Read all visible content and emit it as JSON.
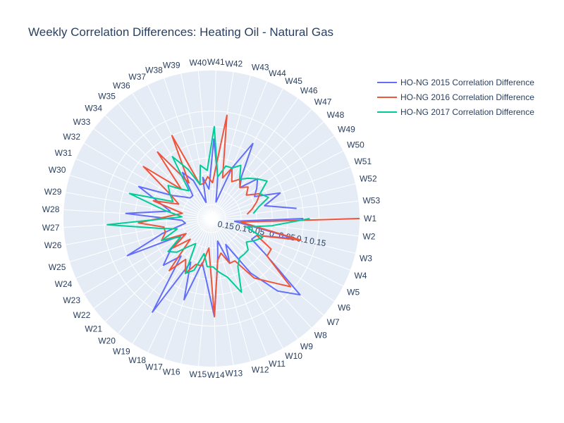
{
  "chart_data": {
    "type": "polar-line",
    "title": "Weekly Correlation Differences: Heating Oil - Natural Gas",
    "angular_categories": [
      "W1",
      "W2",
      "W3",
      "W4",
      "W5",
      "W6",
      "W7",
      "W8",
      "W9",
      "W10",
      "W11",
      "W12",
      "W13",
      "W14",
      "W15",
      "W16",
      "W17",
      "W18",
      "W19",
      "W20",
      "W21",
      "W22",
      "W23",
      "W24",
      "W25",
      "W26",
      "W27",
      "W28",
      "W29",
      "W30",
      "W31",
      "W32",
      "W33",
      "W34",
      "W35",
      "W36",
      "W37",
      "W38",
      "W39",
      "W40",
      "W41",
      "W42",
      "W43",
      "W44",
      "W45",
      "W46",
      "W47",
      "W48",
      "W49",
      "W50",
      "W51",
      "W52",
      "W53"
    ],
    "radial_range": [
      0.195,
      -0.28
    ],
    "radial_ticks": [
      0.15,
      0.1,
      0.05,
      0,
      -0.05,
      -0.1,
      -0.15
    ],
    "radial_tick_labels": [
      "0.15",
      "0.1",
      "0.05",
      "0",
      "0.05",
      "0.1",
      "0.15"
    ],
    "legend_position": "top-right",
    "series": [
      {
        "name": "HO-NG 2015 Correlation Difference",
        "color": "#636efa",
        "values": [
          -0.1,
          0.12,
          -0.08,
          0.04,
          0.05,
          -0.02,
          -0.18,
          -0.12,
          -0.02,
          0.1,
          0.04,
          0.12,
          0.06,
          -0.12,
          0.0,
          0.05,
          -0.08,
          0.04,
          -0.16,
          0.04,
          -0.02,
          0.03,
          0.1,
          -0.1,
          0.03,
          0.11,
          0.1,
          -0.08,
          0.06,
          0.02,
          -0.06,
          0.05,
          0.08,
          0.1,
          0.1,
          0.02,
          0.06,
          0.14,
          0.06,
          0.1,
          -0.06,
          0.06,
          0.14,
          0.02,
          -0.08,
          0.03,
          0.06,
          0.0,
          0.02,
          0.04,
          -0.04,
          0.02,
          -0.08
        ]
      },
      {
        "name": "HO-NG 2016 Correlation Difference",
        "color": "#ef553b",
        "values": [
          -0.28,
          0.1,
          -0.1,
          0.04,
          -0.02,
          -0.02,
          -0.14,
          -0.08,
          -0.04,
          0.04,
          0.04,
          0.08,
          0.06,
          -0.12,
          0.1,
          0.04,
          0.04,
          0.0,
          0.04,
          -0.02,
          0.1,
          0.04,
          0.1,
          0.02,
          0.04,
          0.04,
          -0.04,
          0.06,
          0.1,
          0.0,
          0.08,
          0.04,
          -0.08,
          0.06,
          -0.08,
          0.06,
          -0.1,
          0.08,
          0.08,
          0.06,
          0.08,
          -0.14,
          0.06,
          0.02,
          0.06,
          0.04,
          0.06,
          0.04,
          0.06,
          0.02,
          0.04,
          0.06,
          0.08
        ]
      },
      {
        "name": "HO-NG 2017 Correlation Difference",
        "color": "#00cc96",
        "values": [
          -0.12,
          0.0,
          0.08,
          0.02,
          0.04,
          0.06,
          0.04,
          0.04,
          0.04,
          0.02,
          -0.06,
          0.0,
          0.02,
          0.04,
          0.04,
          0.08,
          0.02,
          0.0,
          0.1,
          0.08,
          0.04,
          0.02,
          0.08,
          0.02,
          0.08,
          0.02,
          -0.14,
          0.1,
          0.04,
          -0.08,
          0.06,
          0.04,
          0.02,
          0.06,
          0.08,
          -0.04,
          0.02,
          0.08,
          0.02,
          0.04,
          -0.1,
          0.06,
          0.02,
          0.02,
          0.0,
          0.04,
          0.02,
          0.0,
          -0.02,
          0.02,
          0.0,
          0.04,
          0.06
        ]
      }
    ]
  }
}
